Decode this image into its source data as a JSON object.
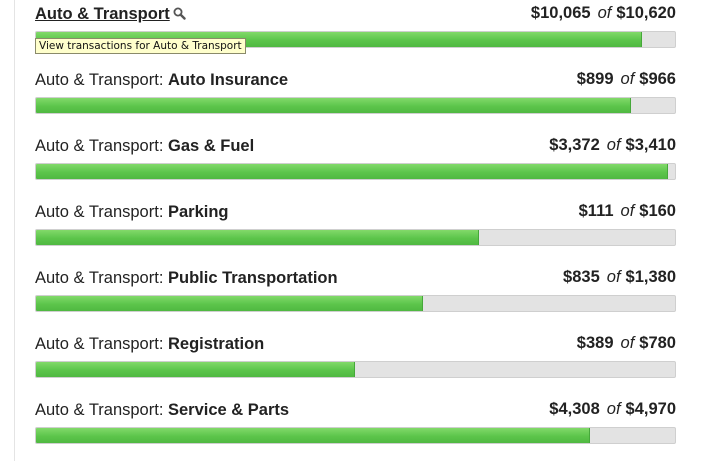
{
  "tooltip": "View transactions for Auto & Transport",
  "rows": [
    {
      "prefix": "",
      "name": "Auto & Transport",
      "spent": "$10,065",
      "budget": "$10,620",
      "of": "of",
      "fill": 0.948
    },
    {
      "prefix": "Auto & Transport: ",
      "name": "Auto Insurance",
      "spent": "$899",
      "budget": "$966",
      "of": "of",
      "fill": 0.931
    },
    {
      "prefix": "Auto & Transport: ",
      "name": "Gas & Fuel",
      "spent": "$3,372",
      "budget": "$3,410",
      "of": "of",
      "fill": 0.989
    },
    {
      "prefix": "Auto & Transport: ",
      "name": "Parking",
      "spent": "$111",
      "budget": "$160",
      "of": "of",
      "fill": 0.694
    },
    {
      "prefix": "Auto & Transport: ",
      "name": "Public Transportation",
      "spent": "$835",
      "budget": "$1,380",
      "of": "of",
      "fill": 0.605
    },
    {
      "prefix": "Auto & Transport: ",
      "name": "Registration",
      "spent": "$389",
      "budget": "$780",
      "of": "of",
      "fill": 0.499
    },
    {
      "prefix": "Auto & Transport: ",
      "name": "Service & Parts",
      "spent": "$4,308",
      "budget": "$4,970",
      "of": "of",
      "fill": 0.867
    }
  ]
}
